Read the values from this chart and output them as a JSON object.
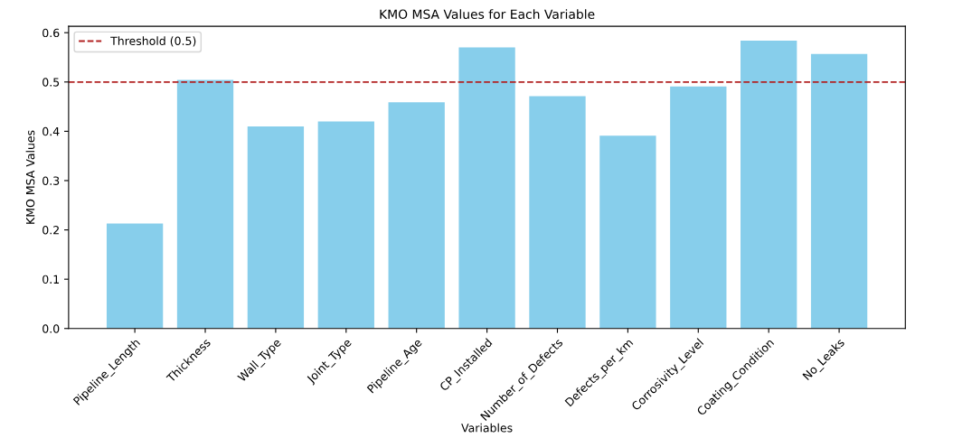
{
  "chart_data": {
    "type": "bar",
    "title": "KMO MSA Values for Each Variable",
    "xlabel": "Variables",
    "ylabel": "KMO MSA Values",
    "categories": [
      "Pipeline_Length",
      "Thickness",
      "Wall_Type",
      "Joint_Type",
      "Pipeline_Age",
      "CP_Installed",
      "Number_of_Defects",
      "Defects_per_km",
      "Corrosivity_Level",
      "Coating_Condition",
      "No_Leaks"
    ],
    "values": [
      0.213,
      0.504,
      0.41,
      0.42,
      0.459,
      0.57,
      0.471,
      0.391,
      0.491,
      0.584,
      0.557
    ],
    "color": "#87ceeb",
    "ylim": [
      0,
      0.613
    ],
    "yticks": [
      {
        "value": 0,
        "label": "0.0"
      },
      0.1,
      0.2,
      0.3,
      0.4,
      0.5,
      0.6
    ],
    "ref_lines": [
      {
        "axis": "y",
        "value": 0.5,
        "label": "Threshold (0.5)",
        "color": "#b22222",
        "line_style": "dashed"
      }
    ],
    "legend": "top left",
    "grid": false
  }
}
